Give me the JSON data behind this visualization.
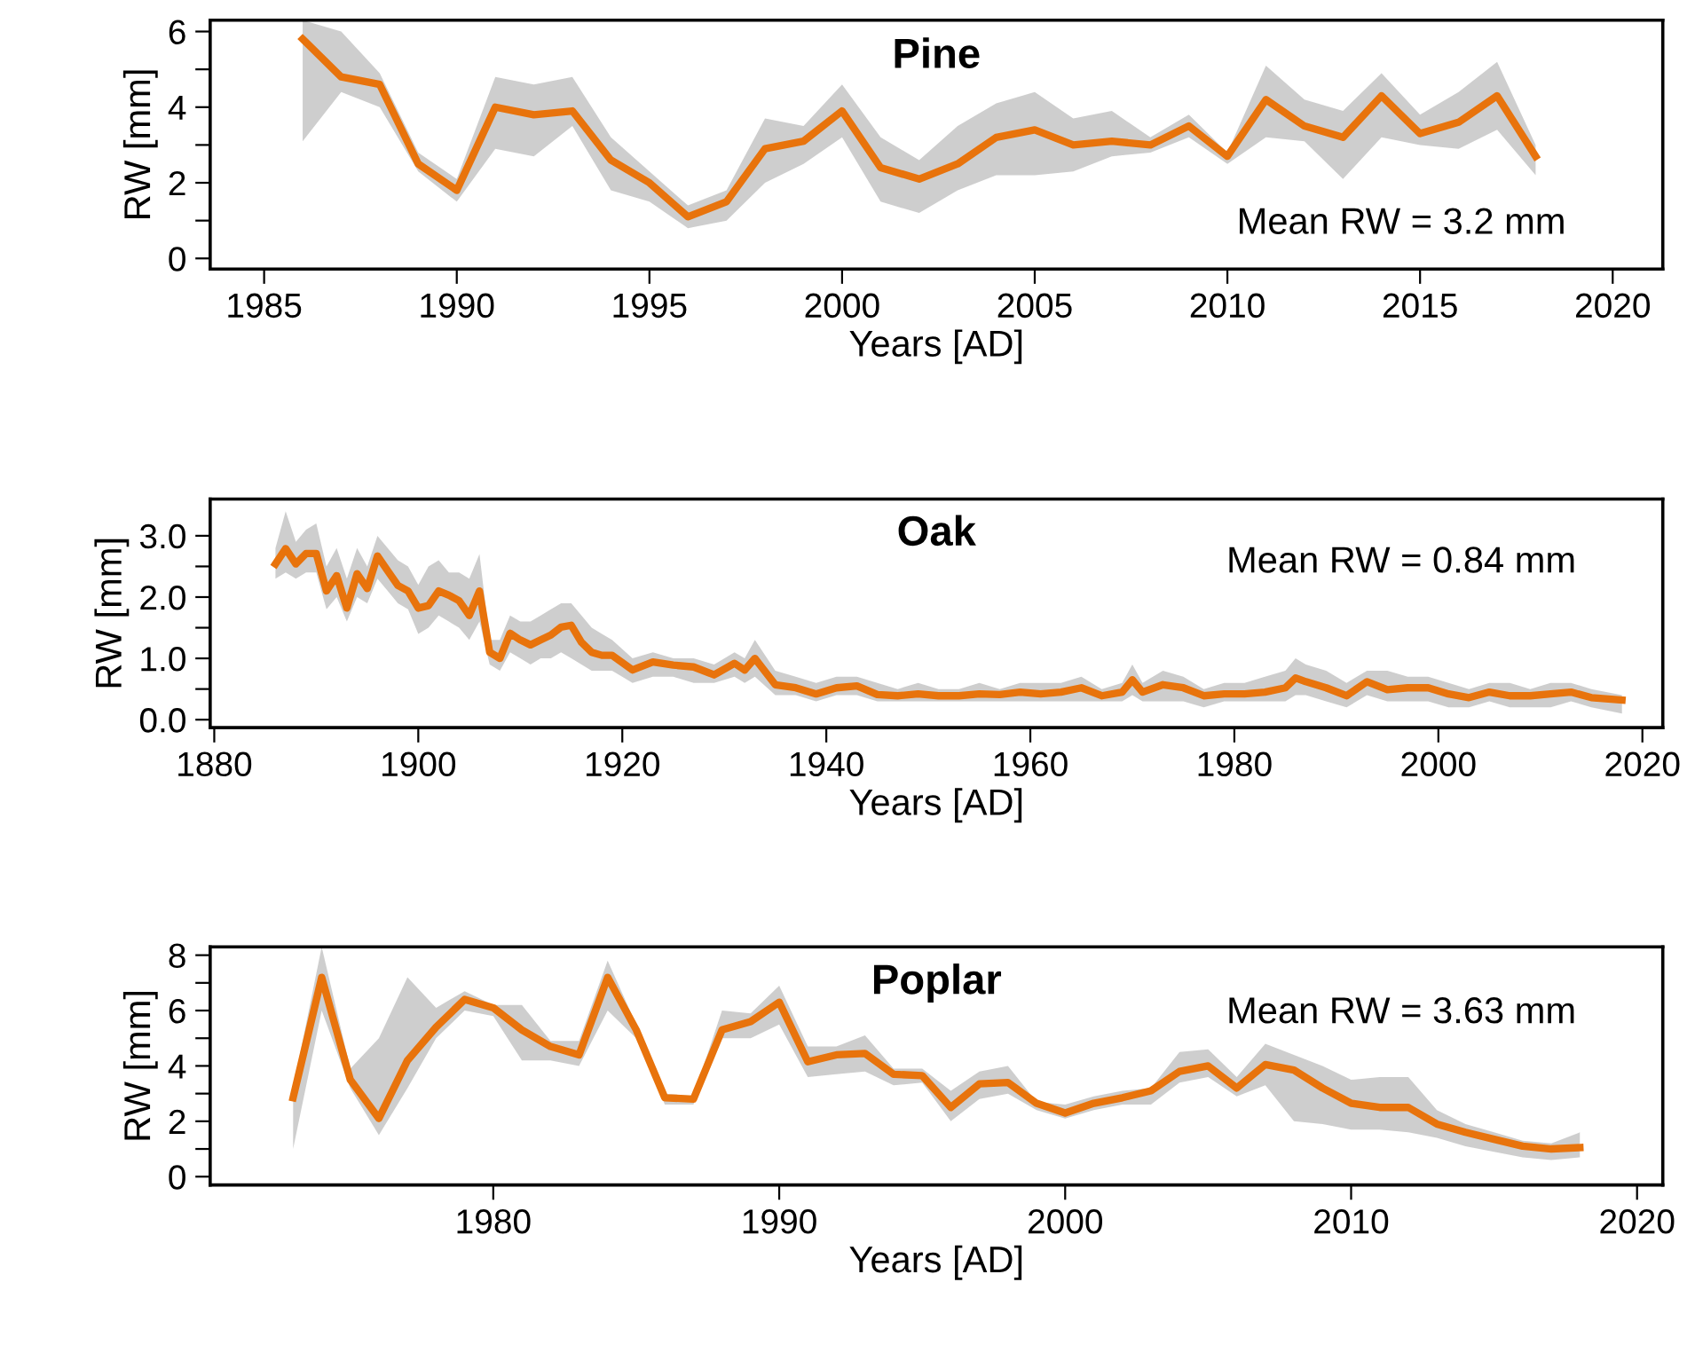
{
  "chart_data": [
    {
      "type": "line",
      "title": "Pine",
      "xlabel": "Years [AD]",
      "ylabel": "RW [mm]",
      "annotations": [
        "Mean RW = 3.2 mm"
      ],
      "xlim": [
        1983.6,
        2021.3
      ],
      "ylim": [
        -0.28,
        6.3
      ],
      "xticks": [
        1985,
        1990,
        1995,
        2000,
        2005,
        2010,
        2015,
        2020
      ],
      "yticks": [
        0,
        {
          "value": 1,
          "label": null
        },
        2,
        {
          "value": 3,
          "label": null
        },
        4,
        {
          "value": 5,
          "label": null
        },
        6
      ],
      "grid": false,
      "series": [
        {
          "color": "#e8730c",
          "x": [
            1986,
            1987,
            1988,
            1989,
            1990,
            1991,
            1992,
            1993,
            1994,
            1995,
            1996,
            1997,
            1998,
            1999,
            2000,
            2001,
            2002,
            2003,
            2004,
            2005,
            2006,
            2007,
            2008,
            2009,
            2010,
            2011,
            2012,
            2013,
            2014,
            2015,
            2016,
            2017,
            2018
          ],
          "values": [
            5.8,
            4.8,
            4.6,
            2.5,
            1.8,
            4.0,
            3.8,
            3.9,
            2.6,
            2.0,
            1.1,
            1.5,
            2.9,
            3.1,
            3.9,
            2.4,
            2.1,
            2.5,
            3.2,
            3.4,
            3.0,
            3.1,
            3.0,
            3.5,
            2.7,
            4.2,
            3.5,
            3.2,
            4.3,
            3.3,
            3.6,
            4.3,
            2.7
          ],
          "lower": [
            3.1,
            4.4,
            4.0,
            2.3,
            1.5,
            2.9,
            2.7,
            3.5,
            1.8,
            1.5,
            0.8,
            1.0,
            2.0,
            2.5,
            3.2,
            1.5,
            1.2,
            1.8,
            2.2,
            2.2,
            2.3,
            2.7,
            2.8,
            3.2,
            2.5,
            3.2,
            3.1,
            2.1,
            3.2,
            3.0,
            2.9,
            3.4,
            2.2
          ],
          "upper": [
            6.3,
            6.0,
            4.9,
            2.8,
            2.1,
            4.8,
            4.6,
            4.8,
            3.2,
            2.3,
            1.4,
            1.8,
            3.7,
            3.5,
            4.6,
            3.2,
            2.6,
            3.5,
            4.1,
            4.4,
            3.7,
            3.9,
            3.2,
            3.8,
            2.8,
            5.1,
            4.2,
            3.9,
            4.9,
            3.8,
            4.4,
            5.2,
            3.0
          ]
        }
      ]
    },
    {
      "type": "line",
      "title": "Oak",
      "xlabel": "Years [AD]",
      "ylabel": "RW [mm]",
      "annotations": [
        "Mean RW = 0.84 mm"
      ],
      "xlim": [
        1879.6,
        2022
      ],
      "ylim": [
        -0.13,
        3.6
      ],
      "xticks": [
        1880,
        1900,
        1920,
        1940,
        1960,
        1980,
        2000,
        2020
      ],
      "yticks": [
        {
          "value": 0,
          "label": "0.0"
        },
        {
          "value": 0.5,
          "label": null
        },
        {
          "value": 1,
          "label": "1.0"
        },
        {
          "value": 1.5,
          "label": null
        },
        {
          "value": 2,
          "label": "2.0"
        },
        {
          "value": 2.5,
          "label": null
        },
        {
          "value": 3,
          "label": "3.0"
        }
      ],
      "grid": false,
      "series": [
        {
          "color": "#e8730c",
          "x": [
            1886,
            1887,
            1888,
            1889,
            1890,
            1891,
            1892,
            1893,
            1894,
            1895,
            1896,
            1897,
            1898,
            1899,
            1900,
            1901,
            1902,
            1903,
            1904,
            1905,
            1906,
            1907,
            1908,
            1909,
            1910,
            1911,
            1912,
            1913,
            1914,
            1915,
            1916,
            1917,
            1918,
            1919,
            1921,
            1923,
            1925,
            1927,
            1929,
            1931,
            1932,
            1933,
            1935,
            1937,
            1939,
            1941,
            1943,
            1945,
            1947,
            1949,
            1951,
            1953,
            1955,
            1957,
            1959,
            1961,
            1963,
            1965,
            1967,
            1969,
            1970,
            1971,
            1973,
            1975,
            1977,
            1979,
            1981,
            1983,
            1985,
            1986,
            1987,
            1989,
            1991,
            1993,
            1995,
            1997,
            1999,
            2001,
            2003,
            2005,
            2007,
            2009,
            2011,
            2013,
            2015,
            2018
          ],
          "values": [
            2.54,
            2.79,
            2.54,
            2.71,
            2.71,
            2.1,
            2.35,
            1.82,
            2.38,
            2.14,
            2.67,
            2.43,
            2.19,
            2.1,
            1.82,
            1.86,
            2.1,
            2.03,
            1.94,
            1.7,
            2.1,
            1.1,
            1.0,
            1.41,
            1.3,
            1.22,
            1.3,
            1.38,
            1.51,
            1.54,
            1.26,
            1.1,
            1.05,
            1.05,
            0.81,
            0.94,
            0.89,
            0.86,
            0.73,
            0.92,
            0.81,
            1.0,
            0.57,
            0.52,
            0.42,
            0.52,
            0.55,
            0.41,
            0.39,
            0.42,
            0.39,
            0.39,
            0.42,
            0.41,
            0.45,
            0.42,
            0.45,
            0.52,
            0.39,
            0.45,
            0.65,
            0.45,
            0.57,
            0.52,
            0.39,
            0.42,
            0.42,
            0.45,
            0.52,
            0.68,
            0.62,
            0.52,
            0.39,
            0.62,
            0.49,
            0.52,
            0.52,
            0.42,
            0.36,
            0.45,
            0.39,
            0.39,
            0.42,
            0.45,
            0.36,
            0.32
          ],
          "lower": [
            2.3,
            2.4,
            2.3,
            2.4,
            2.4,
            1.8,
            2.0,
            1.6,
            2.0,
            1.9,
            2.3,
            2.1,
            1.9,
            1.8,
            1.4,
            1.5,
            1.7,
            1.6,
            1.5,
            1.3,
            1.6,
            0.9,
            0.8,
            1.1,
            1.0,
            0.9,
            1.0,
            1.0,
            1.1,
            1.0,
            0.9,
            0.8,
            0.8,
            0.8,
            0.6,
            0.7,
            0.7,
            0.6,
            0.6,
            0.7,
            0.6,
            0.7,
            0.4,
            0.4,
            0.3,
            0.4,
            0.4,
            0.3,
            0.3,
            0.3,
            0.3,
            0.3,
            0.3,
            0.3,
            0.3,
            0.3,
            0.3,
            0.3,
            0.3,
            0.3,
            0.4,
            0.3,
            0.3,
            0.3,
            0.2,
            0.3,
            0.3,
            0.3,
            0.3,
            0.4,
            0.4,
            0.3,
            0.2,
            0.4,
            0.3,
            0.3,
            0.3,
            0.2,
            0.2,
            0.3,
            0.2,
            0.2,
            0.2,
            0.3,
            0.2,
            0.1
          ],
          "upper": [
            2.8,
            3.4,
            2.9,
            3.1,
            3.2,
            2.5,
            2.8,
            2.3,
            2.8,
            2.5,
            3.0,
            2.8,
            2.6,
            2.5,
            2.2,
            2.5,
            2.6,
            2.4,
            2.4,
            2.3,
            2.7,
            1.3,
            1.3,
            1.7,
            1.6,
            1.6,
            1.7,
            1.8,
            1.9,
            1.9,
            1.7,
            1.5,
            1.4,
            1.3,
            1.0,
            1.1,
            1.0,
            1.0,
            0.9,
            1.1,
            1.0,
            1.3,
            0.8,
            0.7,
            0.6,
            0.7,
            0.7,
            0.6,
            0.5,
            0.6,
            0.5,
            0.5,
            0.6,
            0.5,
            0.6,
            0.6,
            0.6,
            0.7,
            0.5,
            0.6,
            0.9,
            0.6,
            0.8,
            0.7,
            0.5,
            0.6,
            0.6,
            0.7,
            0.8,
            1.0,
            0.9,
            0.8,
            0.6,
            0.8,
            0.8,
            0.7,
            0.7,
            0.6,
            0.5,
            0.6,
            0.6,
            0.5,
            0.6,
            0.6,
            0.5,
            0.4
          ]
        }
      ]
    },
    {
      "type": "line",
      "title": "Poplar",
      "xlabel": "Years [AD]",
      "ylabel": "RW [mm]",
      "annotations": [
        "Mean RW = 3.63 mm"
      ],
      "xlim": [
        1970.1,
        2020.9
      ],
      "ylim": [
        -0.3,
        8.3
      ],
      "xticks": [
        1980,
        1990,
        2000,
        2010,
        2020
      ],
      "yticks": [
        0,
        {
          "value": 1,
          "label": null
        },
        2,
        {
          "value": 3,
          "label": null
        },
        4,
        {
          "value": 5,
          "label": null
        },
        6,
        {
          "value": 7,
          "label": null
        },
        8
      ],
      "grid": false,
      "series": [
        {
          "color": "#e8730c",
          "x": [
            1973,
            1974,
            1975,
            1976,
            1977,
            1978,
            1979,
            1980,
            1981,
            1982,
            1983,
            1984,
            1985,
            1986,
            1987,
            1988,
            1989,
            1990,
            1991,
            1992,
            1993,
            1994,
            1995,
            1996,
            1997,
            1998,
            1999,
            2000,
            2001,
            2002,
            2003,
            2004,
            2005,
            2006,
            2007,
            2008,
            2009,
            2010,
            2011,
            2012,
            2013,
            2014,
            2015,
            2016,
            2017,
            2018
          ],
          "values": [
            2.85,
            7.2,
            3.5,
            2.1,
            4.2,
            5.4,
            6.4,
            6.1,
            5.3,
            4.7,
            4.4,
            7.2,
            5.3,
            2.85,
            2.8,
            5.3,
            5.6,
            6.3,
            4.15,
            4.4,
            4.45,
            3.7,
            3.65,
            2.5,
            3.35,
            3.4,
            2.65,
            2.3,
            2.65,
            2.85,
            3.1,
            3.8,
            4.0,
            3.2,
            4.05,
            3.85,
            3.2,
            2.65,
            2.5,
            2.5,
            1.9,
            1.6,
            1.35,
            1.1,
            1.0,
            1.05
          ],
          "lower": [
            1.0,
            6.0,
            3.2,
            1.5,
            3.2,
            5.0,
            6.0,
            5.8,
            4.2,
            4.2,
            4.0,
            6.0,
            5.0,
            2.6,
            2.6,
            5.0,
            5.0,
            5.5,
            3.6,
            3.7,
            3.8,
            3.3,
            3.4,
            2.0,
            2.8,
            3.0,
            2.4,
            2.1,
            2.4,
            2.6,
            2.6,
            3.4,
            3.6,
            2.9,
            3.3,
            2.0,
            1.9,
            1.7,
            1.7,
            1.6,
            1.4,
            1.1,
            0.9,
            0.7,
            0.6,
            0.7
          ],
          "upper": [
            3.2,
            8.3,
            3.9,
            5.0,
            7.2,
            6.1,
            6.7,
            6.2,
            6.2,
            4.9,
            4.9,
            7.8,
            5.5,
            3.0,
            2.9,
            6.0,
            5.9,
            6.9,
            4.7,
            4.7,
            5.1,
            3.9,
            3.9,
            3.1,
            3.8,
            4.0,
            2.7,
            2.6,
            2.9,
            3.1,
            3.2,
            4.5,
            4.6,
            3.6,
            4.8,
            4.4,
            4.0,
            3.5,
            3.6,
            3.6,
            2.4,
            1.9,
            1.6,
            1.3,
            1.2,
            1.6
          ]
        }
      ]
    }
  ]
}
